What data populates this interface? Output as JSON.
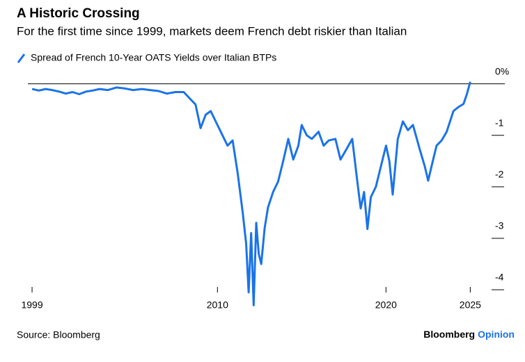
{
  "chart_data": {
    "type": "line",
    "title": "A Historic Crossing",
    "subtitle": "For the first time since 1999, markets deem French debt riskier than Italian",
    "source": "Source: Bloomberg",
    "brand": [
      "Bloomberg",
      "Opinion"
    ],
    "series": [
      {
        "name": "Spread of French 10-Year OATS Yields over Italian BTPs",
        "color": "#1a73e8",
        "x": [
          1999,
          1999.4,
          1999.8,
          2000.2,
          2000.6,
          2001,
          2001.4,
          2001.8,
          2002.2,
          2002.6,
          2003,
          2003.5,
          2004,
          2004.5,
          2005,
          2005.5,
          2006,
          2006.5,
          2007,
          2007.5,
          2008,
          2008.4,
          2008.7,
          2009,
          2009.3,
          2009.6,
          2010,
          2010.3,
          2010.6,
          2010.9,
          2011.2,
          2011.5,
          2011.7,
          2011.85,
          2012,
          2012.15,
          2012.3,
          2012.45,
          2012.6,
          2012.8,
          2013,
          2013.3,
          2013.6,
          2013.9,
          2014.2,
          2014.5,
          2014.8,
          2015,
          2015.3,
          2015.6,
          2016,
          2016.3,
          2016.6,
          2017,
          2017.3,
          2017.6,
          2018,
          2018.3,
          2018.5,
          2018.7,
          2018.9,
          2019.1,
          2019.4,
          2019.7,
          2020,
          2020.2,
          2020.4,
          2020.7,
          2021,
          2021.3,
          2021.6,
          2022,
          2022.3,
          2022.5,
          2022.8,
          2023,
          2023.3,
          2023.6,
          2024,
          2024.3,
          2024.6,
          2024.8,
          2025
        ],
        "values": [
          -0.1,
          -0.13,
          -0.1,
          -0.12,
          -0.15,
          -0.19,
          -0.16,
          -0.2,
          -0.15,
          -0.13,
          -0.1,
          -0.12,
          -0.07,
          -0.09,
          -0.12,
          -0.1,
          -0.12,
          -0.14,
          -0.19,
          -0.16,
          -0.16,
          -0.3,
          -0.4,
          -0.86,
          -0.6,
          -0.53,
          -0.8,
          -1.0,
          -1.2,
          -1.1,
          -1.74,
          -2.5,
          -3.1,
          -4.05,
          -2.9,
          -4.3,
          -2.7,
          -3.3,
          -3.5,
          -2.8,
          -2.4,
          -2.1,
          -1.9,
          -1.5,
          -1.07,
          -1.47,
          -1.2,
          -0.8,
          -1.0,
          -1.07,
          -0.93,
          -1.2,
          -1.1,
          -1.07,
          -1.47,
          -1.3,
          -1.07,
          -1.9,
          -2.42,
          -2.1,
          -2.82,
          -2.2,
          -2.0,
          -1.6,
          -1.2,
          -1.5,
          -2.15,
          -1.07,
          -0.73,
          -0.9,
          -0.8,
          -1.27,
          -1.6,
          -1.88,
          -1.47,
          -1.2,
          -1.1,
          -0.93,
          -0.53,
          -0.45,
          -0.39,
          -0.2,
          0.04
        ]
      }
    ],
    "xlim": [
      1998.75,
      2027.05
    ],
    "xticks": [
      1999,
      2010,
      2020,
      2025
    ],
    "ylim": [
      -4.31,
      0.09
    ],
    "yticks": [
      {
        "value": 0,
        "label": "0%"
      },
      -1,
      -2,
      -3,
      -4
    ]
  }
}
